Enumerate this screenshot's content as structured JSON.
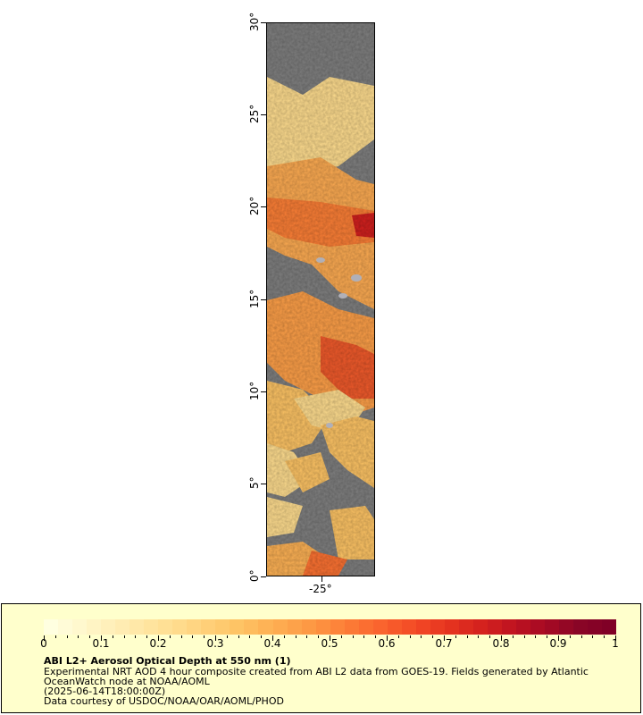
{
  "map": {
    "lat_labels": [
      "0°",
      "5°",
      "10°",
      "15°",
      "20°",
      "25°",
      "30°"
    ],
    "lon_label": "-25°",
    "land_mask_color": "#7f7f7f",
    "cloud_color": "#b0b0b8"
  },
  "legend": {
    "title": "ABI L2+ Aerosol Optical Depth at 550 nm (1)",
    "line1": "Experimental NRT AOD 4 hour composite created from ABI L2 data from GOES-19. Fields generated by Atlantic",
    "line2": "OceanWatch node at NOAA/AOML",
    "line3": "(2025-06-14T18:00:00Z)",
    "line4": "Data courtesy of USDOC/NOAA/OAR/AOML/PHOD",
    "ticks": [
      "0",
      "0.1",
      "0.2",
      "0.3",
      "0.4",
      "0.5",
      "0.6",
      "0.7",
      "0.8",
      "0.9",
      "1"
    ],
    "background": "#ffffcc"
  },
  "colorbar_colors": [
    "#ffffe0",
    "#fff7cc",
    "#ffefb8",
    "#ffe6a3",
    "#ffdd8f",
    "#ffd07a",
    "#fec465",
    "#feb255",
    "#fd9f48",
    "#fd8a3c",
    "#fc7232",
    "#f85b2b",
    "#f04424",
    "#e3301f",
    "#d2201e",
    "#bd1220",
    "#a50a24",
    "#8a0526",
    "#800026"
  ]
}
